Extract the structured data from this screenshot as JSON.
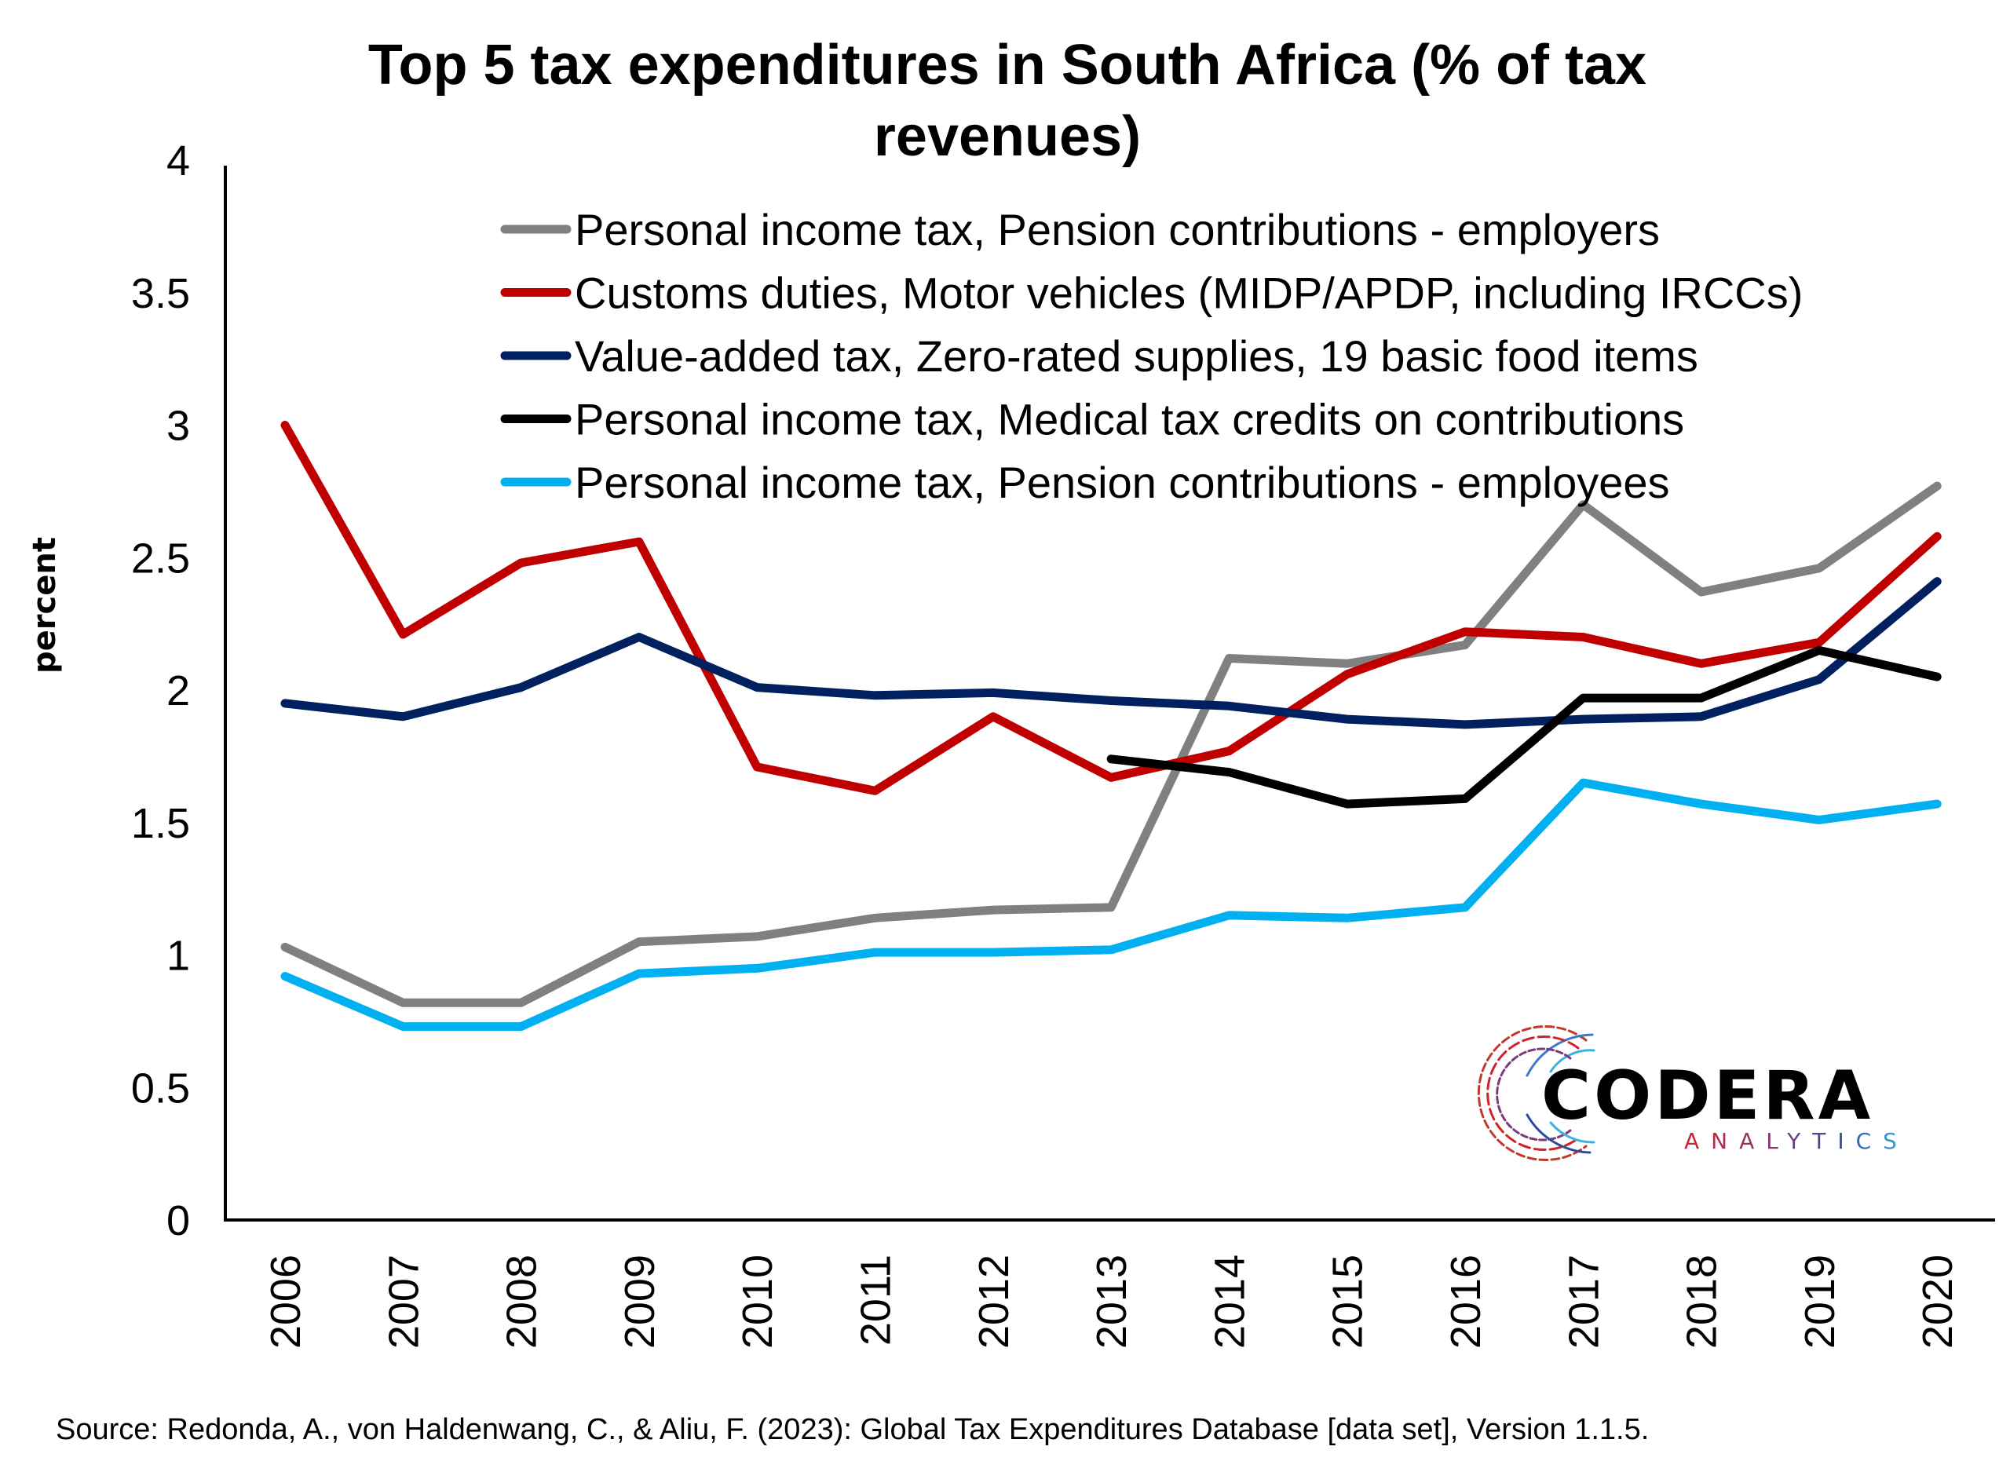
{
  "chart_data": {
    "type": "line",
    "title": "Top 5 tax expenditures in South Africa (% of tax revenues)",
    "title_lines": [
      "Top 5 tax expenditures in South Africa (% of tax",
      "revenues)"
    ],
    "xlabel": "",
    "ylabel": "percent",
    "x": [
      "2006",
      "2007",
      "2008",
      "2009",
      "2010",
      "2011",
      "2012",
      "2013",
      "2014",
      "2015",
      "2016",
      "2017",
      "2018",
      "2019",
      "2020"
    ],
    "ylim": [
      0,
      4
    ],
    "yticks": [
      0,
      0.5,
      1,
      1.5,
      2,
      2.5,
      3,
      3.5,
      4
    ],
    "ytick_labels": [
      "0",
      "0.5",
      "1",
      "1.5",
      "2",
      "2.5",
      "3",
      "3.5",
      "4"
    ],
    "grid": false,
    "legend_position": "top-right",
    "series": [
      {
        "name": "Personal income tax, Pension contributions - employers",
        "color": "#808080",
        "values": [
          1.03,
          0.82,
          0.82,
          1.05,
          1.07,
          1.14,
          1.17,
          1.18,
          2.12,
          2.1,
          2.17,
          2.7,
          2.37,
          2.46,
          2.77
        ]
      },
      {
        "name": "Customs duties, Motor vehicles (MIDP/APDP, including IRCCs)",
        "color": "#C00000",
        "values": [
          3.0,
          2.21,
          2.48,
          2.56,
          1.71,
          1.62,
          1.9,
          1.67,
          1.77,
          2.06,
          2.22,
          2.2,
          2.1,
          2.18,
          2.58
        ]
      },
      {
        "name": "Value-added tax, Zero-rated supplies, 19 basic food items",
        "color": "#002060",
        "values": [
          1.95,
          1.9,
          2.01,
          2.2,
          2.01,
          1.98,
          1.99,
          1.96,
          1.94,
          1.89,
          1.87,
          1.89,
          1.9,
          2.04,
          2.41
        ]
      },
      {
        "name": "Personal income tax, Medical tax credits on contributions",
        "color": "#000000",
        "values": [
          null,
          null,
          null,
          null,
          null,
          null,
          null,
          1.74,
          1.69,
          1.57,
          1.59,
          1.97,
          1.97,
          2.15,
          2.05
        ]
      },
      {
        "name": "Personal income tax, Pension contributions - employees",
        "color": "#00B0F0",
        "values": [
          0.92,
          0.73,
          0.73,
          0.93,
          0.95,
          1.01,
          1.01,
          1.02,
          1.15,
          1.14,
          1.18,
          1.65,
          1.57,
          1.51,
          1.57
        ]
      }
    ],
    "source": "Source: Redonda, A., von Haldenwang, C., & Aliu, F. (2023): Global Tax Expenditures Database [data set], Version 1.1.5."
  },
  "logo": {
    "name": "CODERA",
    "tagline": "ANALYTICS"
  }
}
